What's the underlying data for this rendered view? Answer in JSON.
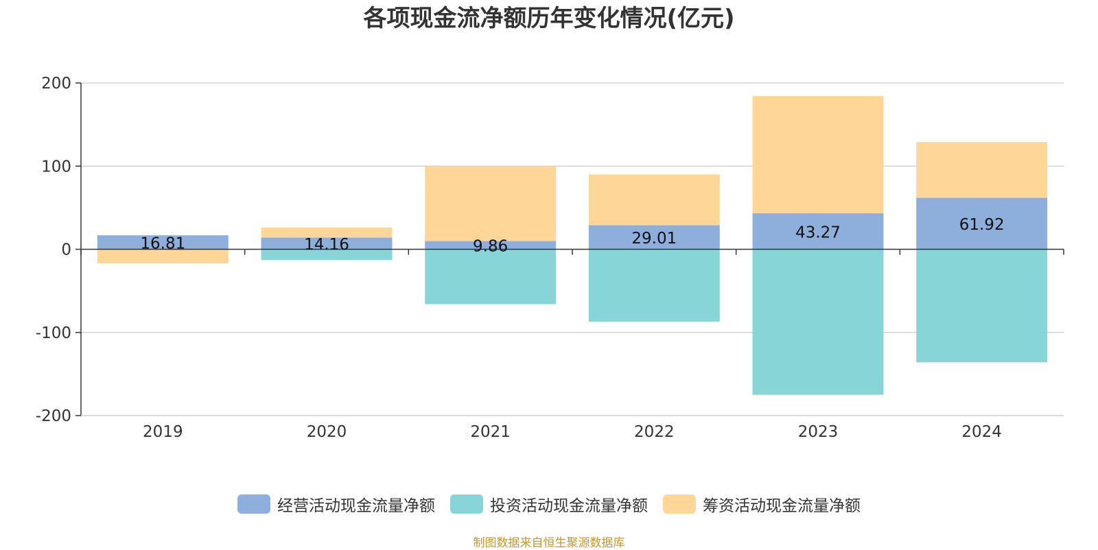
{
  "chart_data": {
    "type": "bar",
    "stacked": true,
    "title": "各项现金流净额历年变化情况(亿元)",
    "categories": [
      "2019",
      "2020",
      "2021",
      "2022",
      "2023",
      "2024"
    ],
    "ylim": [
      -200,
      200
    ],
    "yticks": [
      200,
      100,
      0,
      -100,
      -200
    ],
    "grid": true,
    "legend_position": "bottom",
    "series": [
      {
        "name": "经营活动现金流量净额",
        "color": "#8eaedc",
        "values": [
          16.81,
          14.16,
          9.86,
          29.01,
          43.27,
          61.92
        ],
        "labels": [
          "16.81",
          "14.16",
          "9.86",
          "29.01",
          "43.27",
          "61.92"
        ]
      },
      {
        "name": "投资活动现金流量净额",
        "color": "#88d5d8",
        "values": [
          0,
          -13,
          -66,
          -87,
          -175,
          -136
        ]
      },
      {
        "name": "筹资活动现金流量净额",
        "color": "#fed798",
        "values": [
          -17,
          12,
          90,
          61,
          141,
          67
        ]
      }
    ]
  },
  "source_note": "制图数据来自恒生聚源数据库"
}
